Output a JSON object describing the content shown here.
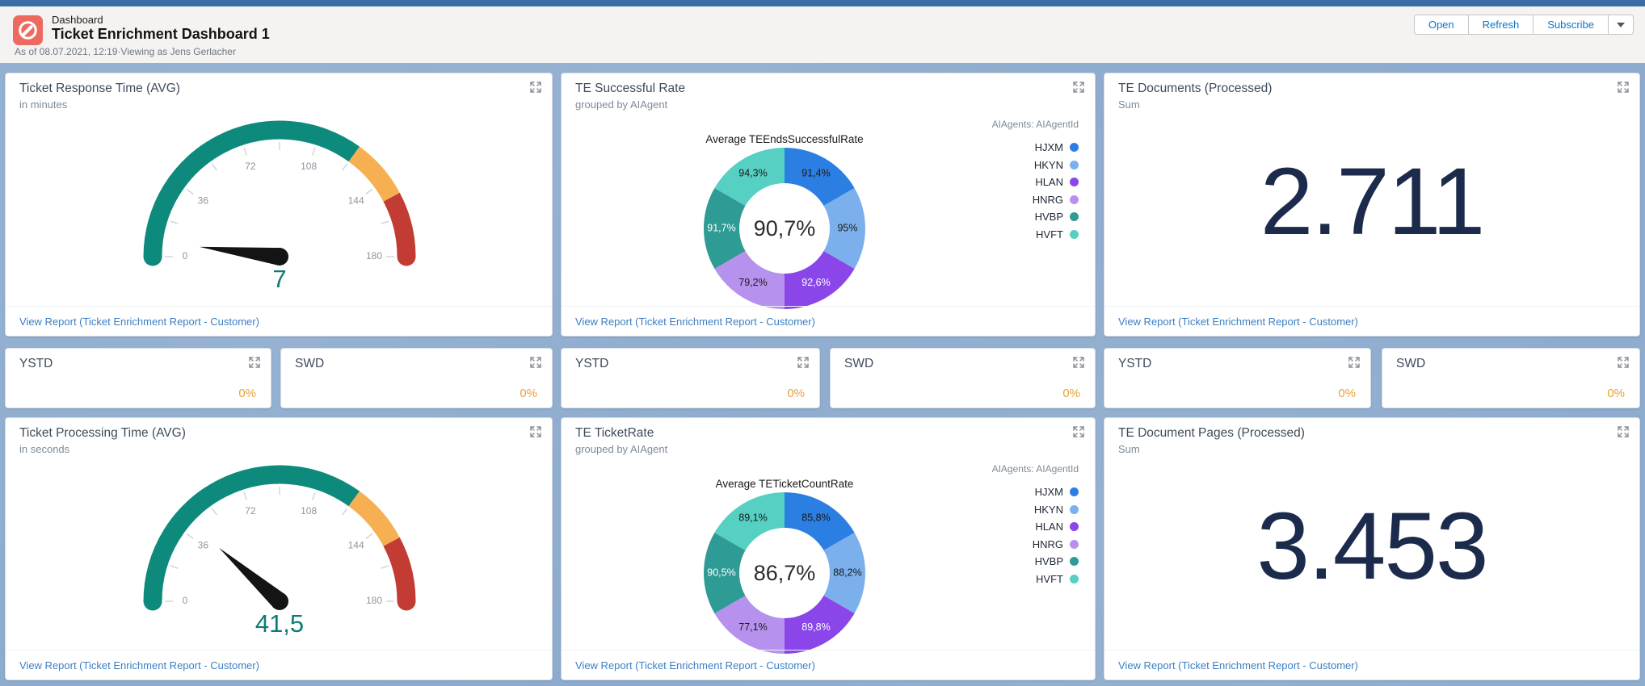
{
  "page": {
    "background_color": "#8dabce",
    "top_strip_color": "#3a6da4"
  },
  "header": {
    "app_label": "Dashboard",
    "title": "Ticket Enrichment Dashboard 1",
    "meta": "As of 08.07.2021, 12:19·Viewing as Jens Gerlacher",
    "buttons": {
      "open": "Open",
      "refresh": "Refresh",
      "subscribe": "Subscribe"
    },
    "icon_color": "#ec6a5f"
  },
  "common": {
    "view_report": "View Report (Ticket Enrichment Report - Customer)"
  },
  "widgets": {
    "gauge1": {
      "title": "Ticket Response Time (AVG)",
      "subtitle": "in minutes"
    },
    "donut1": {
      "title": "TE Successful Rate",
      "subtitle": "grouped by AIAgent"
    },
    "metric1": {
      "title": "TE Documents (Processed)",
      "subtitle": "Sum",
      "value": "2.711"
    },
    "small": [
      {
        "title": "YSTD",
        "value": "0%"
      },
      {
        "title": "SWD",
        "value": "0%"
      },
      {
        "title": "YSTD",
        "value": "0%"
      },
      {
        "title": "SWD",
        "value": "0%"
      },
      {
        "title": "YSTD",
        "value": "0%"
      },
      {
        "title": "SWD",
        "value": "0%"
      }
    ],
    "gauge2": {
      "title": "Ticket Processing Time (AVG)",
      "subtitle": "in seconds"
    },
    "donut2": {
      "title": "TE TicketRate",
      "subtitle": "grouped by AIAgent"
    },
    "metric2": {
      "title": "TE Document Pages (Processed)",
      "subtitle": "Sum",
      "value": "3.453"
    }
  },
  "legend": {
    "title": "AIAgents: AIAgentId",
    "items": [
      {
        "label": "HJXM",
        "color": "#2b7fe3"
      },
      {
        "label": "HKYN",
        "color": "#7cb0ec"
      },
      {
        "label": "HLAN",
        "color": "#8a46e8"
      },
      {
        "label": "HNRG",
        "color": "#b791ee"
      },
      {
        "label": "HVBP",
        "color": "#2e9b94"
      },
      {
        "label": "HVFT",
        "color": "#55d0c2"
      }
    ]
  },
  "chart_data": [
    {
      "id": "gauge1",
      "type": "gauge",
      "title": "Ticket Response Time (AVG)",
      "subtitle": "in minutes",
      "min": 0,
      "max": 180,
      "value": 7,
      "value_label": "7",
      "tick_labels": [
        0,
        36,
        72,
        108,
        144,
        180
      ],
      "zones": [
        {
          "from": 0,
          "to": 126,
          "color": "#0e8a7d"
        },
        {
          "from": 126,
          "to": 152,
          "color": "#f6b052"
        },
        {
          "from": 152,
          "to": 180,
          "color": "#c33c33"
        }
      ],
      "value_color": "#0d7d72",
      "needle_color": "#141414"
    },
    {
      "id": "donut1",
      "type": "donut",
      "title": "Average TEEndsSuccessfulRate",
      "center_label": "90,7%",
      "group": "AIAgents: AIAgentId",
      "equal_segments": true,
      "segments": [
        {
          "label": "HJXM",
          "value": 91.4,
          "value_label": "91,4%",
          "color": "#2b7fe3",
          "text_color": "#1a1a1a"
        },
        {
          "label": "HKYN",
          "value": 95.0,
          "value_label": "95%",
          "color": "#7cb0ec",
          "text_color": "#1a1a1a"
        },
        {
          "label": "HLAN",
          "value": 92.6,
          "value_label": "92,6%",
          "color": "#8a46e8",
          "text_color": "#ffffff"
        },
        {
          "label": "HNRG",
          "value": 79.2,
          "value_label": "79,2%",
          "color": "#b791ee",
          "text_color": "#1a1a1a"
        },
        {
          "label": "HVBP",
          "value": 91.7,
          "value_label": "91,7%",
          "color": "#2e9b94",
          "text_color": "#ffffff"
        },
        {
          "label": "HVFT",
          "value": 94.3,
          "value_label": "94,3%",
          "color": "#55d0c2",
          "text_color": "#1a1a1a"
        }
      ]
    },
    {
      "id": "metric1",
      "type": "metric",
      "title": "TE Documents (Processed)",
      "aggregate": "Sum",
      "value": "2.711"
    },
    {
      "id": "tile1",
      "type": "metric",
      "title": "YSTD",
      "value": "0%"
    },
    {
      "id": "tile2",
      "type": "metric",
      "title": "SWD",
      "value": "0%"
    },
    {
      "id": "tile3",
      "type": "metric",
      "title": "YSTD",
      "value": "0%"
    },
    {
      "id": "tile4",
      "type": "metric",
      "title": "SWD",
      "value": "0%"
    },
    {
      "id": "tile5",
      "type": "metric",
      "title": "YSTD",
      "value": "0%"
    },
    {
      "id": "tile6",
      "type": "metric",
      "title": "SWD",
      "value": "0%"
    },
    {
      "id": "gauge2",
      "type": "gauge",
      "title": "Ticket Processing Time (AVG)",
      "subtitle": "in seconds",
      "min": 0,
      "max": 180,
      "value": 41.5,
      "value_label": "41,5",
      "tick_labels": [
        0,
        36,
        72,
        108,
        144,
        180
      ],
      "zones": [
        {
          "from": 0,
          "to": 126,
          "color": "#0e8a7d"
        },
        {
          "from": 126,
          "to": 152,
          "color": "#f6b052"
        },
        {
          "from": 152,
          "to": 180,
          "color": "#c33c33"
        }
      ],
      "value_color": "#0d7d72",
      "needle_color": "#141414"
    },
    {
      "id": "donut2",
      "type": "donut",
      "title": "Average TETicketCountRate",
      "center_label": "86,7%",
      "group": "AIAgents: AIAgentId",
      "equal_segments": true,
      "segments": [
        {
          "label": "HJXM",
          "value": 85.8,
          "value_label": "85,8%",
          "color": "#2b7fe3",
          "text_color": "#1a1a1a"
        },
        {
          "label": "HKYN",
          "value": 88.2,
          "value_label": "88,2%",
          "color": "#7cb0ec",
          "text_color": "#1a1a1a"
        },
        {
          "label": "HLAN",
          "value": 89.8,
          "value_label": "89,8%",
          "color": "#8a46e8",
          "text_color": "#ffffff"
        },
        {
          "label": "HNRG",
          "value": 77.1,
          "value_label": "77,1%",
          "color": "#b791ee",
          "text_color": "#1a1a1a"
        },
        {
          "label": "HVBP",
          "value": 90.5,
          "value_label": "90,5%",
          "color": "#2e9b94",
          "text_color": "#ffffff"
        },
        {
          "label": "HVFT",
          "value": 89.1,
          "value_label": "89,1%",
          "color": "#55d0c2",
          "text_color": "#1a1a1a"
        }
      ]
    },
    {
      "id": "metric2",
      "type": "metric",
      "title": "TE Document Pages (Processed)",
      "aggregate": "Sum",
      "value": "3.453"
    }
  ]
}
